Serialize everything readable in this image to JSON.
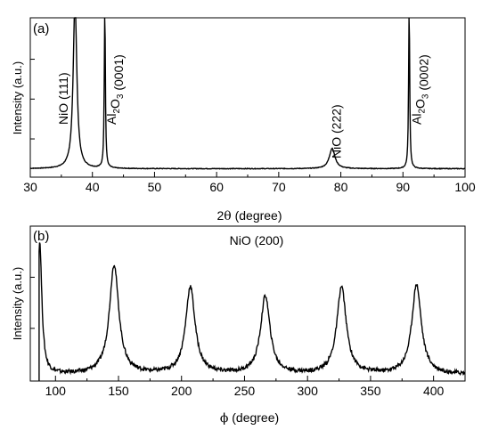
{
  "chart_data": [
    {
      "panel_label": "(a)",
      "type": "line",
      "xlabel_prefix": "2",
      "xlabel_symbol": "θ",
      "xlabel_suffix": " (degree)",
      "ylabel": "Intensity (a.u.)",
      "xlim": [
        30,
        100
      ],
      "ylim": [
        0,
        1
      ],
      "y_scale": "relative (a.u.)",
      "grid": false,
      "x_ticks": [
        "30",
        "40",
        "50",
        "60",
        "70",
        "80",
        "90",
        "100"
      ],
      "x_tick_values": [
        30,
        40,
        50,
        60,
        70,
        80,
        90,
        100
      ],
      "y_ticks_labeled": false,
      "baseline": 0.05,
      "peaks": [
        {
          "center": 37.2,
          "height": 1.0,
          "width": 0.35
        },
        {
          "center": 42.0,
          "height": 1.0,
          "width": 0.1
        },
        {
          "center": 78.6,
          "height": 0.12,
          "width": 0.55
        },
        {
          "center": 91.0,
          "height": 1.0,
          "width": 0.1
        }
      ],
      "annotations": [
        {
          "x": 36.0,
          "main": "NiO (111)"
        },
        {
          "x": 43.8,
          "main": "Al",
          "sub": "2",
          "mid": "O",
          "sub2": "3",
          "tail": " (0001)"
        },
        {
          "x": 80.0,
          "main": "NiO (222)"
        },
        {
          "x": 92.9,
          "main": "Al",
          "sub": "2",
          "mid": "O",
          "sub2": "3",
          "tail": " (0002)"
        }
      ]
    },
    {
      "panel_label": "(b)",
      "type": "line",
      "title": "NiO (200)",
      "xlabel_symbol": "ϕ",
      "xlabel_suffix": " (degree)",
      "ylabel": "Intensity (a.u.)",
      "xlim": [
        80,
        425
      ],
      "ylim": [
        0,
        1
      ],
      "y_scale": "relative (a.u.)",
      "grid": false,
      "x_ticks": [
        "100",
        "150",
        "200",
        "250",
        "300",
        "350",
        "400"
      ],
      "x_tick_values": [
        100,
        150,
        200,
        250,
        300,
        350,
        400
      ],
      "y_ticks_labeled": false,
      "x_start": 87,
      "baseline": 0.05,
      "peaks": [
        {
          "center": 87.5,
          "height": 1.0,
          "width": 2.0
        },
        {
          "center": 146.5,
          "height": 0.83,
          "width": 4.5
        },
        {
          "center": 207,
          "height": 0.66,
          "width": 4.5
        },
        {
          "center": 266.5,
          "height": 0.59,
          "width": 4.5
        },
        {
          "center": 327,
          "height": 0.66,
          "width": 4.5
        },
        {
          "center": 386.5,
          "height": 0.68,
          "width": 4.5
        }
      ]
    }
  ]
}
